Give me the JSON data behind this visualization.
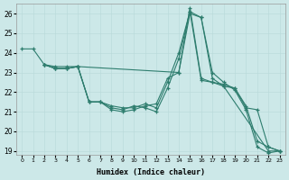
{
  "xlabel": "Humidex (Indice chaleur)",
  "ylabel": "",
  "background_color": "#cce8e8",
  "line_color": "#2e7d6e",
  "xlim": [
    -0.5,
    23.5
  ],
  "ylim": [
    18.8,
    26.5
  ],
  "yticks": [
    19,
    20,
    21,
    22,
    23,
    24,
    25,
    26
  ],
  "xticks": [
    0,
    1,
    2,
    3,
    4,
    5,
    6,
    7,
    8,
    9,
    10,
    11,
    12,
    13,
    14,
    15,
    16,
    17,
    18,
    19,
    20,
    21,
    22,
    23
  ],
  "series": [
    {
      "x": [
        0,
        1,
        2,
        3,
        4,
        5,
        14,
        15,
        16,
        17,
        18,
        22,
        23
      ],
      "y": [
        24.2,
        24.2,
        23.4,
        23.3,
        23.3,
        23.3,
        23.0,
        26.3,
        22.7,
        22.5,
        22.3,
        19.0,
        19.0
      ]
    },
    {
      "x": [
        2,
        3,
        4,
        5,
        6,
        7,
        8,
        9,
        10,
        11,
        12,
        13,
        14,
        15,
        16,
        17,
        18,
        19,
        20,
        21,
        22,
        23
      ],
      "y": [
        23.4,
        23.2,
        23.2,
        23.3,
        21.5,
        21.5,
        21.3,
        21.2,
        21.2,
        21.4,
        21.2,
        22.5,
        24.0,
        26.1,
        25.8,
        22.7,
        22.3,
        22.2,
        21.2,
        21.1,
        19.2,
        19.0
      ]
    },
    {
      "x": [
        2,
        3,
        4,
        5,
        6,
        7,
        8,
        9,
        10,
        11,
        12,
        13,
        14,
        15,
        16,
        17,
        18,
        19,
        20,
        21,
        22,
        23
      ],
      "y": [
        23.4,
        23.2,
        23.2,
        23.3,
        21.5,
        21.5,
        21.2,
        21.1,
        21.3,
        21.2,
        21.0,
        22.2,
        23.7,
        26.1,
        22.6,
        22.5,
        22.4,
        22.2,
        21.3,
        19.5,
        19.2,
        19.0
      ]
    },
    {
      "x": [
        2,
        3,
        4,
        5,
        6,
        7,
        8,
        9,
        10,
        11,
        12,
        13,
        14,
        15,
        16,
        17,
        18,
        19,
        20,
        21,
        22,
        23
      ],
      "y": [
        23.4,
        23.2,
        23.2,
        23.3,
        21.5,
        21.5,
        21.1,
        21.0,
        21.1,
        21.3,
        21.4,
        22.7,
        23.0,
        26.0,
        25.8,
        23.0,
        22.5,
        22.1,
        21.1,
        19.2,
        18.9,
        19.0
      ]
    }
  ]
}
